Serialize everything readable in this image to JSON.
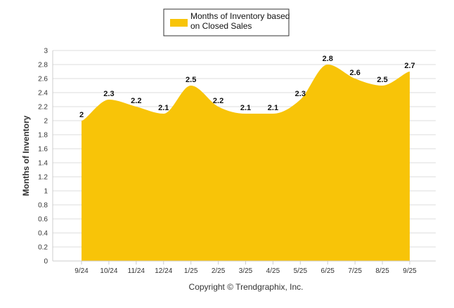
{
  "footer": {
    "copyright": "Copyright © Trendgraphix, Inc."
  },
  "chart_data": {
    "type": "area",
    "legend": {
      "position": "top-center",
      "entries": [
        {
          "line1": "Months of Inventory based",
          "line2": "on Closed Sales"
        }
      ]
    },
    "ylabel": "Months of Inventory",
    "xlabel": "",
    "ylim": [
      0,
      3
    ],
    "yticks": [
      "0",
      "0.2",
      "0.4",
      "0.6",
      "0.8",
      "1",
      "1.2",
      "1.4",
      "1.6",
      "1.8",
      "2",
      "2.2",
      "2.4",
      "2.6",
      "2.8",
      "3"
    ],
    "categories": [
      "9/24",
      "10/24",
      "11/24",
      "12/24",
      "1/25",
      "2/25",
      "3/25",
      "4/25",
      "5/25",
      "6/25",
      "7/25",
      "8/25",
      "9/25"
    ],
    "series": [
      {
        "name": "Months of Inventory based on Closed Sales",
        "values": [
          2,
          2.3,
          2.2,
          2.1,
          2.5,
          2.2,
          2.1,
          2.1,
          2.3,
          2.8,
          2.6,
          2.5,
          2.7
        ],
        "labels": [
          "2",
          "2.3",
          "2.2",
          "2.1",
          "2.5",
          "2.2",
          "2.1",
          "2.1",
          "2.3",
          "2.8",
          "2.6",
          "2.5",
          "2.7"
        ],
        "color": "#f8c408"
      }
    ],
    "grid": true,
    "gridColor": "#dddddd",
    "axisTextColor": "#333333"
  }
}
